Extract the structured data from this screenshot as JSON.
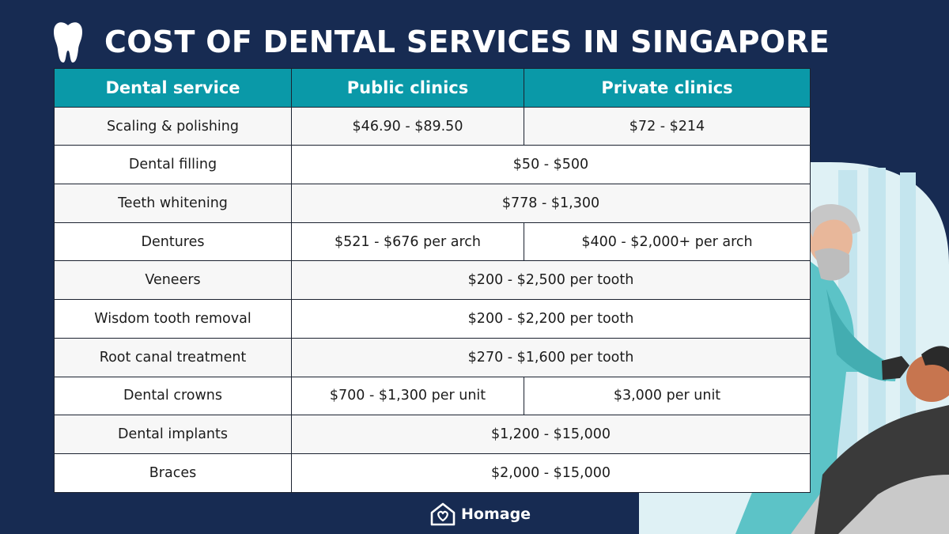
{
  "title": "COST OF DENTAL SERVICES IN SINGAPORE",
  "colors": {
    "background": "#172b52",
    "header": "#0a99a8",
    "row": "#ffffff",
    "brand_text": "#ffffff"
  },
  "icons": {
    "title_icon": "tooth-icon",
    "brand_icon": "home-heart-icon"
  },
  "table": {
    "headers": [
      "Dental service",
      "Public clinics",
      "Private clinics"
    ],
    "rows": [
      {
        "service": "Scaling & polishing",
        "public": "$46.90 - $89.50",
        "private": "$72 - $214"
      },
      {
        "service": "Dental filling",
        "combined": "$50 - $500"
      },
      {
        "service": "Teeth whitening",
        "combined": "$778 - $1,300"
      },
      {
        "service": "Dentures",
        "public": "$521 - $676 per arch",
        "private": "$400 - $2,000+ per arch"
      },
      {
        "service": "Veneers",
        "combined": "$200 - $2,500 per tooth"
      },
      {
        "service": "Wisdom tooth removal",
        "combined": "$200 - $2,200 per tooth"
      },
      {
        "service": "Root canal treatment",
        "combined": "$270 - $1,600 per tooth"
      },
      {
        "service": "Dental crowns",
        "public": "$700 - $1,300 per unit",
        "private": "$3,000 per unit"
      },
      {
        "service": "Dental implants",
        "combined": "$1,200 - $15,000"
      },
      {
        "service": "Braces",
        "combined": "$2,000 - $15,000"
      }
    ]
  },
  "brand": {
    "name": "Homage"
  }
}
